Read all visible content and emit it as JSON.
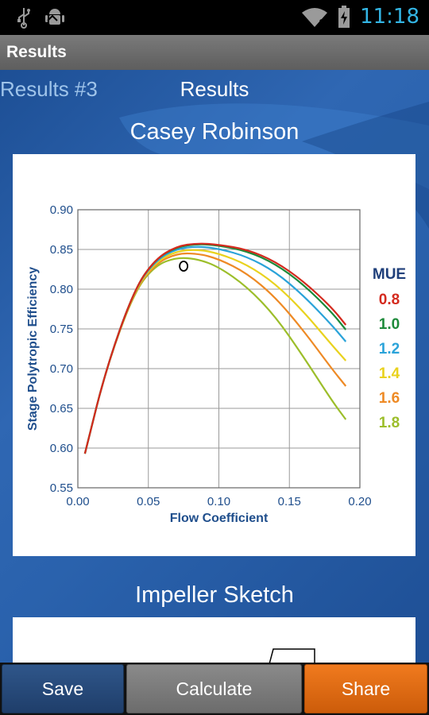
{
  "status_bar": {
    "time": "11:18",
    "icons": [
      "usb-icon",
      "android-debug-icon",
      "wifi-icon",
      "battery-charging-icon"
    ]
  },
  "action_bar": {
    "title": "Results"
  },
  "nav": {
    "back_label": "Results #3",
    "title": "Results"
  },
  "sections": {
    "chart_title": "Casey Robinson",
    "sketch_title": "Impeller Sketch"
  },
  "buttons": {
    "save": "Save",
    "calculate": "Calculate",
    "share": "Share"
  },
  "colors": {
    "status_time": "#33b5e5",
    "save_button": "#2a4d7e",
    "calculate_button": "#7a7a7a",
    "share_button": "#e06a12",
    "background": "#2a5a9c"
  },
  "chart_data": {
    "type": "line",
    "title": "",
    "xlabel": "Flow Coefficient",
    "ylabel": "Stage Polytropic Efficiency",
    "xlim": [
      0.0,
      0.2
    ],
    "ylim": [
      0.55,
      0.9
    ],
    "xticks": [
      "0.00",
      "0.05",
      "0.10",
      "0.15",
      "0.20"
    ],
    "yticks": [
      "0.55",
      "0.60",
      "0.65",
      "0.70",
      "0.75",
      "0.80",
      "0.85",
      "0.90"
    ],
    "grid": true,
    "legend_title": "MUE",
    "legend_position": "right",
    "x": [
      0.005,
      0.02,
      0.04,
      0.055,
      0.07,
      0.085,
      0.1,
      0.12,
      0.14,
      0.16,
      0.18,
      0.19
    ],
    "series": [
      {
        "name": "0.8",
        "color": "#d42a1e",
        "values": [
          0.593,
          0.7,
          0.8,
          0.838,
          0.854,
          0.858,
          0.856,
          0.85,
          0.835,
          0.81,
          0.777,
          0.755
        ]
      },
      {
        "name": "1.0",
        "color": "#1d8a3a",
        "values": [
          0.593,
          0.7,
          0.8,
          0.838,
          0.853,
          0.857,
          0.855,
          0.848,
          0.832,
          0.806,
          0.771,
          0.749
        ]
      },
      {
        "name": "1.2",
        "color": "#2aa3d9",
        "values": [
          0.593,
          0.7,
          0.8,
          0.836,
          0.851,
          0.854,
          0.851,
          0.841,
          0.822,
          0.792,
          0.755,
          0.734
        ]
      },
      {
        "name": "1.4",
        "color": "#e9d21e",
        "values": [
          0.593,
          0.7,
          0.799,
          0.834,
          0.848,
          0.85,
          0.845,
          0.831,
          0.807,
          0.772,
          0.73,
          0.71
        ]
      },
      {
        "name": "1.6",
        "color": "#ee8a25",
        "values": [
          0.593,
          0.7,
          0.798,
          0.832,
          0.845,
          0.845,
          0.838,
          0.82,
          0.79,
          0.748,
          0.7,
          0.678
        ]
      },
      {
        "name": "1.8",
        "color": "#9cbe2a",
        "values": [
          0.593,
          0.7,
          0.797,
          0.83,
          0.84,
          0.838,
          0.828,
          0.803,
          0.766,
          0.715,
          0.66,
          0.636
        ]
      }
    ],
    "marker": {
      "x": 0.075,
      "y": 0.829,
      "shape": "open-circle"
    }
  }
}
